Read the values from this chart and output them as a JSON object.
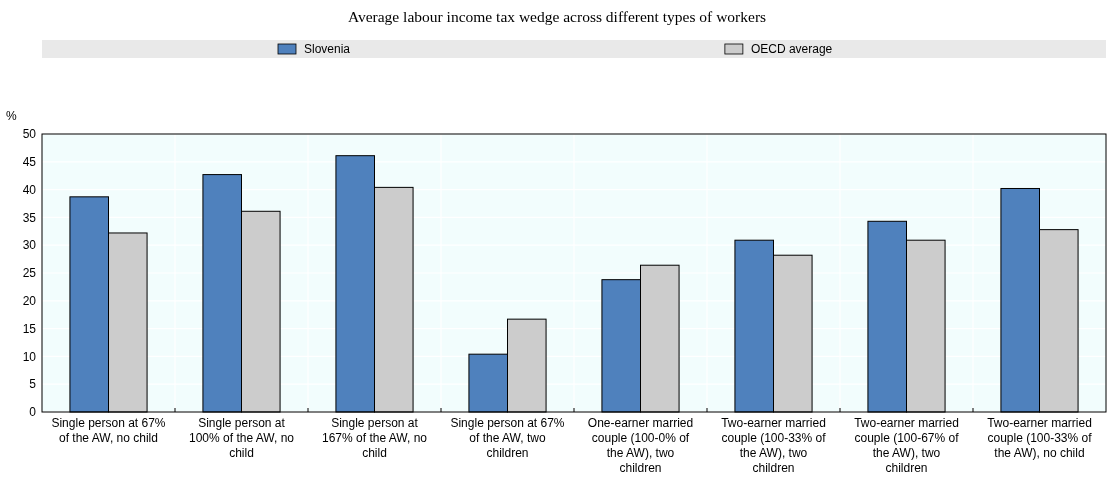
{
  "chart_data": {
    "type": "bar",
    "title": "Average labour income tax wedge across different types of workers",
    "ylabel": "%",
    "categories": [
      "Single person at 67% of the AW, no child",
      "Single person at 100% of the AW, no child",
      "Single person at 167% of the AW, no child",
      "Single person at 67% of the AW, two children",
      "One-earner married couple (100-0% of the AW), two children",
      "Two-earner married couple (100-33% of the AW), two children",
      "Two-earner married couple (100-67% of the AW), two children",
      "Two-earner married couple (100-33% of the AW), no child"
    ],
    "series": [
      {
        "name": "Slovenia",
        "color": "#4f81bd",
        "values": [
          38.7,
          42.7,
          46.1,
          10.4,
          23.8,
          30.9,
          34.3,
          40.2
        ]
      },
      {
        "name": "OECD average",
        "color": "#cccccc",
        "values": [
          32.2,
          36.1,
          40.4,
          16.7,
          26.4,
          28.2,
          30.9,
          32.8
        ]
      }
    ],
    "ylim": [
      0,
      50
    ],
    "yticks": [
      0,
      5,
      10,
      15,
      20,
      25,
      30,
      35,
      40,
      45,
      50
    ],
    "grid": true,
    "legend": "top"
  }
}
